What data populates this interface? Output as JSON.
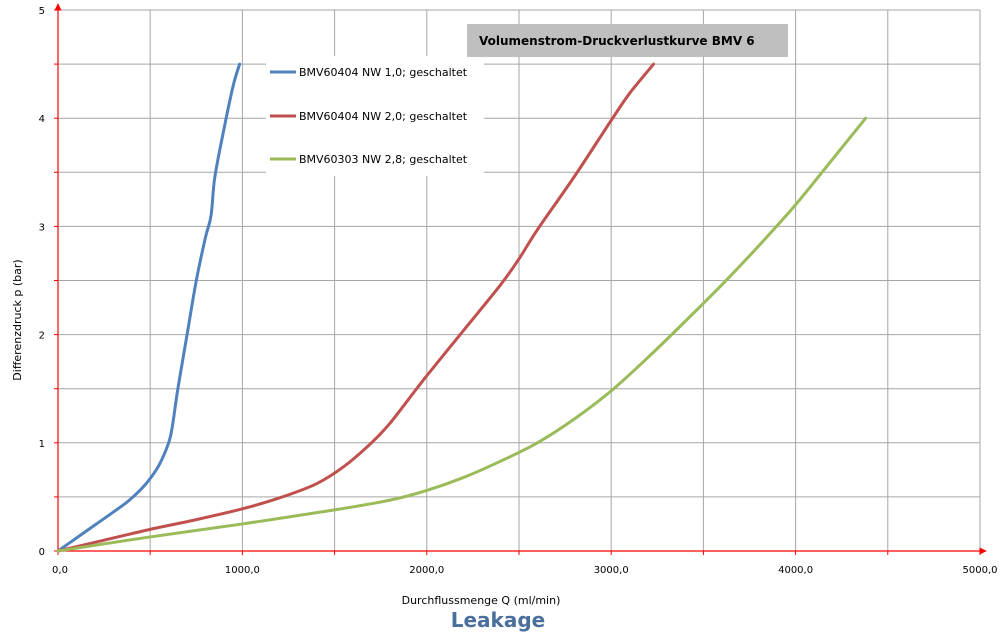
{
  "chart_data": {
    "type": "line",
    "title": "Volumenstrom-Druckverlustkurve BMV 6",
    "xlabel": "Durchflussmenge Q (ml/min)",
    "ylabel": "Differenzdruck p (bar)",
    "caption": "Leakage",
    "xlim": [
      0,
      5000
    ],
    "ylim": [
      0,
      5
    ],
    "grid": true,
    "legend_position": "upper-left-inside",
    "x_tick_labels": [
      "0,0",
      "1000,0",
      "2000,0",
      "3000,0",
      "4000,0",
      "5000,0"
    ],
    "y_tick_labels": [
      "0",
      "1",
      "2",
      "3",
      "4",
      "5"
    ],
    "x_tick_values": [
      0,
      1000,
      2000,
      3000,
      4000,
      5000
    ],
    "y_tick_values": [
      0,
      1,
      2,
      3,
      4,
      5
    ],
    "x_minor_step": 500,
    "y_minor_step": 0.5,
    "colors": {
      "grid": "#a6a6a6",
      "axis_arrow": "#ff0000",
      "title_box": "#bfbfbf",
      "caption": "#4a6f9c"
    },
    "series": [
      {
        "name": "BMV60404 NW 1,0; geschaltet",
        "color": "#4f81bd",
        "x": [
          0,
          100,
          200,
          300,
          380,
          450,
          500,
          550,
          600,
          620,
          650,
          700,
          750,
          800,
          830,
          850,
          900,
          950,
          985
        ],
        "y": [
          0,
          0.12,
          0.24,
          0.36,
          0.46,
          0.57,
          0.67,
          0.8,
          1.0,
          1.15,
          1.5,
          2.0,
          2.5,
          2.9,
          3.1,
          3.45,
          3.9,
          4.3,
          4.5
        ]
      },
      {
        "name": "BMV60404 NW 2,0; geschaltet",
        "color": "#c0504d",
        "x": [
          0,
          250,
          500,
          750,
          1000,
          1200,
          1400,
          1550,
          1700,
          1800,
          1900,
          2000,
          2200,
          2400,
          2500,
          2600,
          2800,
          3000,
          3100,
          3230
        ],
        "y": [
          0,
          0.1,
          0.2,
          0.29,
          0.39,
          0.49,
          0.62,
          0.78,
          1.0,
          1.18,
          1.4,
          1.62,
          2.04,
          2.46,
          2.7,
          2.97,
          3.46,
          3.98,
          4.23,
          4.5
        ]
      },
      {
        "name": "BMV60303 NW 2,8; geschaltet",
        "color": "#9bbb59",
        "x": [
          0,
          500,
          1000,
          1500,
          1800,
          2000,
          2200,
          2400,
          2600,
          2800,
          3000,
          3200,
          3400,
          3600,
          3800,
          4000,
          4200,
          4380
        ],
        "y": [
          0,
          0.13,
          0.25,
          0.38,
          0.47,
          0.56,
          0.68,
          0.83,
          1.0,
          1.22,
          1.48,
          1.79,
          2.12,
          2.46,
          2.82,
          3.2,
          3.62,
          4.0
        ]
      }
    ]
  }
}
